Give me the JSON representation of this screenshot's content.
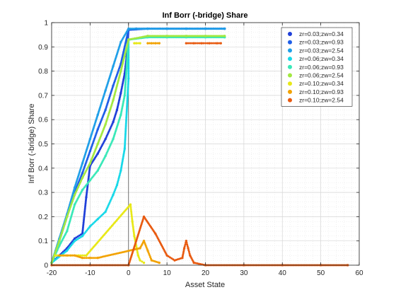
{
  "chart_data": {
    "type": "scatter",
    "title": "Inf Borr (-bridge) Share",
    "xlabel": "Asset State",
    "ylabel": "Inf Borr (-bridge) Share",
    "xlim": [
      -20,
      60
    ],
    "ylim": [
      0,
      1
    ],
    "xticks": [
      -20,
      -10,
      0,
      10,
      20,
      30,
      40,
      50,
      60
    ],
    "yticks": [
      0,
      0.1,
      0.2,
      0.3,
      0.4,
      0.5,
      0.6,
      0.7,
      0.8,
      0.9,
      1
    ],
    "xtick_labels": [
      "-20",
      "-10",
      "0",
      "10",
      "20",
      "30",
      "40",
      "50",
      "60"
    ],
    "ytick_labels": [
      "0",
      "0.1",
      "0.2",
      "0.3",
      "0.4",
      "0.5",
      "0.6",
      "0.7",
      "0.8",
      "0.9",
      "1"
    ],
    "grid": true,
    "legend_position": "top-right",
    "series": [
      {
        "name": "zr=0.03;zw=0.34",
        "color": "#1f3fd9",
        "points": [
          [
            -20,
            0.01
          ],
          [
            -18,
            0.04
          ],
          [
            -16,
            0.07
          ],
          [
            -14,
            0.11
          ],
          [
            -12,
            0.13
          ],
          [
            -11,
            0.28
          ],
          [
            -10,
            0.41
          ],
          [
            -8,
            0.46
          ],
          [
            -6,
            0.52
          ],
          [
            -4,
            0.59
          ],
          [
            -3,
            0.64
          ],
          [
            -2,
            0.71
          ],
          [
            -1,
            0.79
          ],
          [
            -0.5,
            0.86
          ],
          [
            0,
            0.97
          ],
          [
            2,
            0.975
          ],
          [
            5,
            0.975
          ],
          [
            10,
            0.975
          ],
          [
            15,
            0.975
          ],
          [
            20,
            0.975
          ],
          [
            25,
            0.975
          ]
        ]
      },
      {
        "name": "zr=0.03;zw=0.93",
        "color": "#1f5ee8",
        "points": [
          [
            -20,
            0.01
          ],
          [
            -18,
            0.1
          ],
          [
            -16,
            0.2
          ],
          [
            -14,
            0.3
          ],
          [
            -12,
            0.38
          ],
          [
            -10,
            0.47
          ],
          [
            -8,
            0.56
          ],
          [
            -6,
            0.64
          ],
          [
            -4,
            0.74
          ],
          [
            -2,
            0.83
          ],
          [
            0,
            0.97
          ],
          [
            5,
            0.975
          ],
          [
            10,
            0.975
          ],
          [
            15,
            0.975
          ],
          [
            20,
            0.975
          ],
          [
            25,
            0.975
          ]
        ]
      },
      {
        "name": "zr=0.03;zw=2.54",
        "color": "#1f9fe8",
        "points": [
          [
            -20,
            0.01
          ],
          [
            -18,
            0.11
          ],
          [
            -16,
            0.21
          ],
          [
            -14,
            0.32
          ],
          [
            -12,
            0.42
          ],
          [
            -10,
            0.52
          ],
          [
            -8,
            0.62
          ],
          [
            -6,
            0.72
          ],
          [
            -4,
            0.82
          ],
          [
            -2,
            0.92
          ],
          [
            0,
            0.975
          ],
          [
            5,
            0.975
          ],
          [
            10,
            0.975
          ],
          [
            15,
            0.975
          ],
          [
            20,
            0.975
          ],
          [
            25,
            0.975
          ]
        ]
      },
      {
        "name": "zr=0.06;zw=0.34",
        "color": "#17d8e8",
        "points": [
          [
            -20,
            0.01
          ],
          [
            -16,
            0.06
          ],
          [
            -14,
            0.1
          ],
          [
            -12,
            0.12
          ],
          [
            -10,
            0.16
          ],
          [
            -8,
            0.19
          ],
          [
            -6,
            0.22
          ],
          [
            -4,
            0.29
          ],
          [
            -3,
            0.33
          ],
          [
            -2,
            0.39
          ],
          [
            -1,
            0.48
          ],
          [
            0,
            0.77
          ],
          [
            0,
            0.93
          ],
          [
            5,
            0.94
          ],
          [
            10,
            0.94
          ],
          [
            15,
            0.94
          ],
          [
            20,
            0.94
          ],
          [
            25,
            0.94
          ]
        ]
      },
      {
        "name": "zr=0.06;zw=0.93",
        "color": "#38e8b8",
        "points": [
          [
            -20,
            0.01
          ],
          [
            -18,
            0.08
          ],
          [
            -16,
            0.14
          ],
          [
            -14,
            0.25
          ],
          [
            -12,
            0.31
          ],
          [
            -10,
            0.35
          ],
          [
            -8,
            0.39
          ],
          [
            -6,
            0.45
          ],
          [
            -4,
            0.52
          ],
          [
            -2,
            0.62
          ],
          [
            -1,
            0.7
          ],
          [
            0,
            0.93
          ],
          [
            5,
            0.94
          ],
          [
            10,
            0.94
          ],
          [
            15,
            0.94
          ],
          [
            20,
            0.94
          ],
          [
            25,
            0.94
          ]
        ]
      },
      {
        "name": "zr=0.06;zw=2.54",
        "color": "#a2e840",
        "points": [
          [
            -20,
            0.01
          ],
          [
            -18,
            0.1
          ],
          [
            -16,
            0.2
          ],
          [
            -14,
            0.29
          ],
          [
            -12,
            0.36
          ],
          [
            -10,
            0.42
          ],
          [
            -8,
            0.5
          ],
          [
            -6,
            0.58
          ],
          [
            -4,
            0.68
          ],
          [
            -2,
            0.8
          ],
          [
            0,
            0.93
          ],
          [
            5,
            0.945
          ],
          [
            10,
            0.945
          ],
          [
            15,
            0.945
          ],
          [
            20,
            0.945
          ],
          [
            25,
            0.945
          ]
        ]
      },
      {
        "name": "zr=0.10;zw=0.34",
        "color": "#e8e817",
        "points": [
          [
            -19,
            0.04
          ],
          [
            -17,
            0.04
          ],
          [
            -15,
            0.04
          ],
          [
            -13,
            0.04
          ],
          [
            -11,
            0.04
          ],
          [
            0.5,
            0.25
          ],
          [
            1,
            0.18
          ],
          [
            1.5,
            0.12
          ],
          [
            2,
            0.08
          ],
          [
            2.5,
            0.04
          ],
          [
            3,
            0.02
          ],
          [
            4,
            0.01
          ],
          [
            1.5,
            0.915
          ],
          [
            2,
            0.915
          ],
          [
            3,
            0.915
          ]
        ]
      },
      {
        "name": "zr=0.10;zw=0.93",
        "color": "#f2a200",
        "points": [
          [
            -18,
            0.04
          ],
          [
            -16,
            0.04
          ],
          [
            -14,
            0.04
          ],
          [
            -12,
            0.03
          ],
          [
            -10,
            0.03
          ],
          [
            -8,
            0.03
          ],
          [
            3,
            0.07
          ],
          [
            4,
            0.1
          ],
          [
            5,
            0.06
          ],
          [
            6,
            0.02
          ],
          [
            8,
            0.01
          ],
          [
            5,
            0.915
          ],
          [
            6,
            0.915
          ],
          [
            7,
            0.915
          ],
          [
            8,
            0.915
          ]
        ]
      },
      {
        "name": "zr=0.10;zw=2.54",
        "color": "#e85a10",
        "points": [
          [
            -20,
            0
          ],
          [
            -10,
            0
          ],
          [
            0,
            0
          ],
          [
            4,
            0.2
          ],
          [
            7,
            0.13
          ],
          [
            10,
            0.04
          ],
          [
            12,
            0.02
          ],
          [
            14,
            0.03
          ],
          [
            14.5,
            0.07
          ],
          [
            15,
            0.1
          ],
          [
            15.5,
            0.07
          ],
          [
            16,
            0.04
          ],
          [
            17,
            0.01
          ],
          [
            20,
            0
          ],
          [
            30,
            0
          ],
          [
            40,
            0
          ],
          [
            50,
            0
          ],
          [
            57,
            0
          ],
          [
            15,
            0.915
          ],
          [
            17,
            0.915
          ],
          [
            19,
            0.915
          ],
          [
            21,
            0.915
          ],
          [
            23,
            0.915
          ],
          [
            24,
            0.915
          ]
        ]
      }
    ]
  }
}
